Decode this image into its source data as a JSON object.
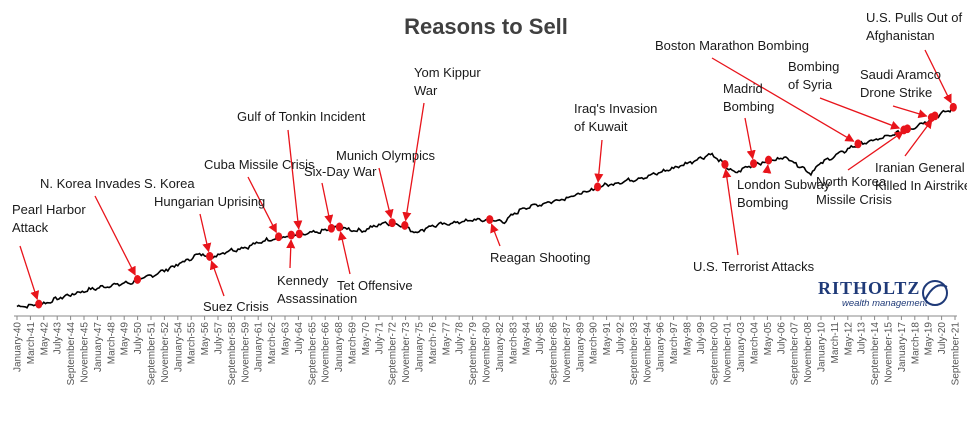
{
  "chart_data": {
    "type": "line",
    "title": "Reasons to Sell",
    "xlabel": "",
    "ylabel": "",
    "grid": false,
    "x_range": [
      "January-40",
      "September-21"
    ],
    "x_ticks": [
      "January-40",
      "March-41",
      "May-42",
      "July-43",
      "September-44",
      "November-45",
      "January-47",
      "March-48",
      "May-49",
      "July-50",
      "September-51",
      "November-52",
      "January-54",
      "March-55",
      "May-56",
      "July-57",
      "September-58",
      "November-59",
      "January-61",
      "March-62",
      "May-63",
      "July-64",
      "September-65",
      "November-66",
      "January-68",
      "March-69",
      "May-70",
      "July-71",
      "September-72",
      "November-73",
      "January-75",
      "March-76",
      "May-77",
      "July-78",
      "September-79",
      "November-80",
      "January-82",
      "March-83",
      "May-84",
      "July-85",
      "September-86",
      "November-87",
      "January-89",
      "March-90",
      "May-91",
      "July-92",
      "September-93",
      "November-94",
      "January-96",
      "March-97",
      "May-98",
      "July-99",
      "September-00",
      "November-01",
      "January-03",
      "March-04",
      "May-05",
      "July-06",
      "September-07",
      "November-08",
      "January-10",
      "March-11",
      "May-12",
      "July-13",
      "September-14",
      "November-15",
      "January-17",
      "March-18",
      "May-19",
      "July-20",
      "September-21"
    ],
    "series": [
      {
        "values_description": "S&P 500 index (log scale), relative level 0-100",
        "x": [
          1940,
          1942,
          1944,
          1946,
          1948,
          1950,
          1952,
          1954,
          1956,
          1957,
          1958,
          1960,
          1962,
          1964,
          1966,
          1968,
          1970,
          1972,
          1973.5,
          1974.8,
          1976,
          1980,
          1982.5,
          1984,
          1987,
          1990,
          1991,
          1995,
          1998,
          2000.5,
          2002.5,
          2004,
          2007,
          2009.2,
          2010,
          2013,
          2016,
          2018,
          2020,
          2021.8
        ],
        "y": [
          4,
          5,
          10,
          14,
          17,
          19,
          24,
          30,
          37,
          34,
          38,
          41,
          46,
          48,
          50,
          53,
          51,
          56,
          55,
          50,
          54,
          58,
          57,
          65,
          70,
          76,
          79,
          85,
          92,
          99,
          87,
          92,
          97,
          87,
          93,
          104,
          110,
          115,
          122,
          128
        ]
      }
    ],
    "events": [
      {
        "label_lines": [
          "Pearl Harbor",
          "Attack"
        ],
        "year": 1941.9
      },
      {
        "label_lines": [
          "N. Korea Invades S. Korea"
        ],
        "year": 1950.5
      },
      {
        "label_lines": [
          "Hungarian Uprising"
        ],
        "year": 1956.8
      },
      {
        "label_lines": [
          "Suez Crisis"
        ],
        "year": 1956.8
      },
      {
        "label_lines": [
          "Cuba Missile Crisis"
        ],
        "year": 1962.8
      },
      {
        "label_lines": [
          "Kennedy",
          "Assassination"
        ],
        "year": 1963.9
      },
      {
        "label_lines": [
          "Gulf of Tonkin Incident"
        ],
        "year": 1964.6
      },
      {
        "label_lines": [
          "Six-Day War"
        ],
        "year": 1967.4
      },
      {
        "label_lines": [
          "Tet Offensive"
        ],
        "year": 1968.1
      },
      {
        "label_lines": [
          "Munich Olympics"
        ],
        "year": 1972.7
      },
      {
        "label_lines": [
          "Yom Kippur",
          "War"
        ],
        "year": 1973.8
      },
      {
        "label_lines": [
          "Reagan Shooting"
        ],
        "year": 1981.2
      },
      {
        "label_lines": [
          "Iraq's Invasion",
          "of Kuwait"
        ],
        "year": 1990.6
      },
      {
        "label_lines": [
          "U.S. Terrorist Attacks"
        ],
        "year": 2001.7
      },
      {
        "label_lines": [
          "Madrid",
          "Bombing"
        ],
        "year": 2004.2
      },
      {
        "label_lines": [
          "London Subway",
          "Bombing"
        ],
        "year": 2005.5
      },
      {
        "label_lines": [
          "Boston Marathon Bombing"
        ],
        "year": 2013.3
      },
      {
        "label_lines": [
          "Bombing",
          "of Syria"
        ],
        "year": 2017.3
      },
      {
        "label_lines": [
          "North Korea",
          "Missile Crisis"
        ],
        "year": 2017.6
      },
      {
        "label_lines": [
          "Saudi Aramco",
          "Drone Strike"
        ],
        "year": 2019.7
      },
      {
        "label_lines": [
          "Iranian General",
          "Killed In Airstrike"
        ],
        "year": 2020.0
      },
      {
        "label_lines": [
          "U.S. Pulls Out of",
          "Afghanistan"
        ],
        "year": 2021.6
      }
    ],
    "marker_color": "#e8141b",
    "line_color": "#000000"
  },
  "logo": {
    "name": "RITHOLTZ",
    "tagline": "wealth management"
  }
}
